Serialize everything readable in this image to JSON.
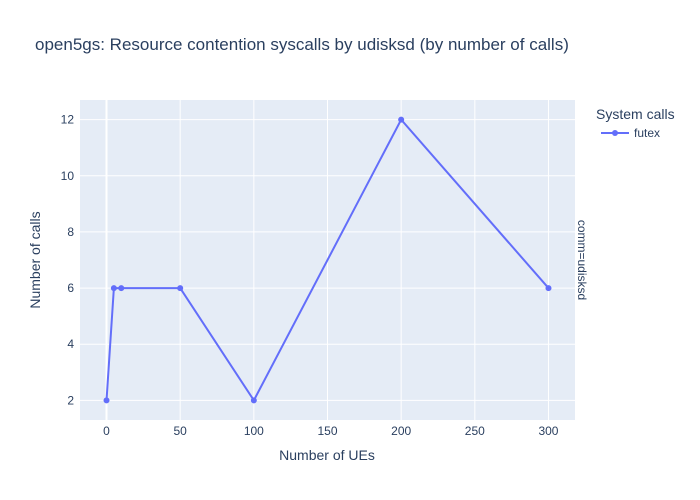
{
  "chart_data": {
    "type": "line",
    "title": "open5gs: Resource contention syscalls by udisksd (by number of calls)",
    "xlabel": "Number of UEs",
    "ylabel": "Number of calls",
    "xlim": [
      -18,
      318
    ],
    "ylim": [
      1.3,
      12.7
    ],
    "x_ticks": [
      0,
      50,
      100,
      150,
      200,
      250,
      300
    ],
    "y_ticks": [
      2,
      4,
      6,
      8,
      10,
      12
    ],
    "grid": true,
    "legend": {
      "title": "System calls",
      "placement": "top-right"
    },
    "facet_label": "comm=udisksd",
    "series": [
      {
        "name": "futex",
        "color": "#636efa",
        "x": [
          0,
          5,
          10,
          50,
          100,
          200,
          300
        ],
        "y": [
          2,
          6,
          6,
          6,
          2,
          12,
          6
        ]
      }
    ]
  },
  "colors": {
    "plot_background": "#e5ecf6",
    "grid": "#ffffff",
    "text": "#2a3f5f"
  }
}
